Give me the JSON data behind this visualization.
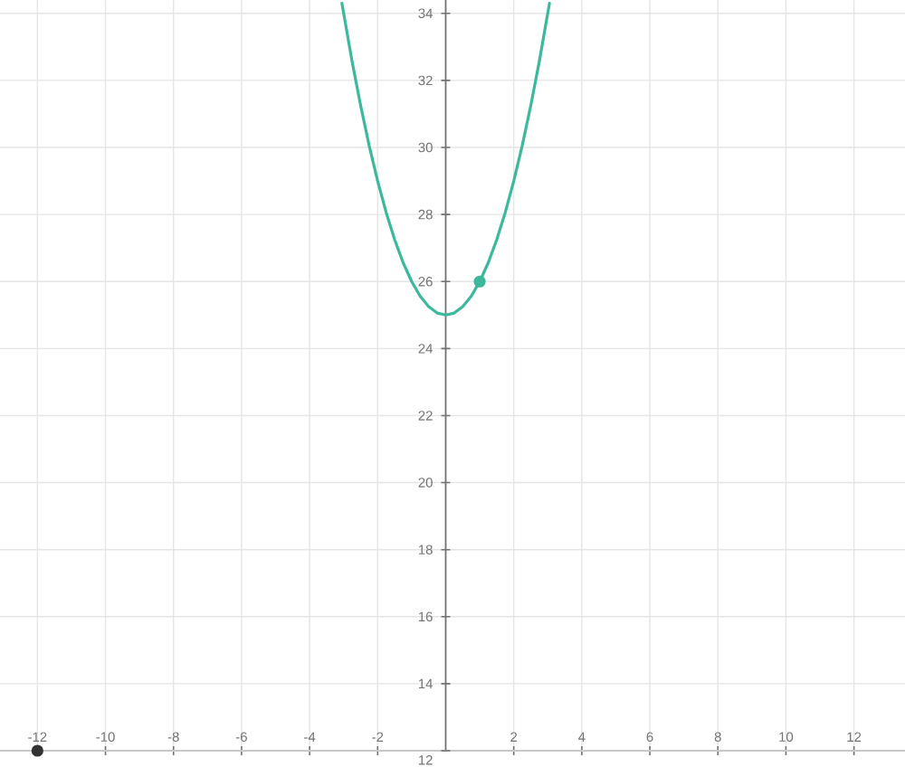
{
  "chart_data": {
    "type": "line",
    "xlim": [
      -13.1,
      13.5
    ],
    "ylim": [
      12,
      34.4
    ],
    "xticks": [
      -12,
      -10,
      -8,
      -6,
      -4,
      -2,
      2,
      4,
      6,
      8,
      10,
      12
    ],
    "yticks": [
      12,
      14,
      16,
      18,
      20,
      22,
      24,
      26,
      28,
      30,
      32,
      34
    ],
    "grid": true,
    "series": [
      {
        "color": "#3cb89c",
        "x": [
          -3.05,
          -2.75,
          -2.5,
          -2.25,
          -2,
          -1.75,
          -1.5,
          -1.25,
          -1,
          -0.75,
          -0.5,
          -0.25,
          0,
          0.25,
          0.5,
          0.75,
          1,
          1.25,
          1.5,
          1.75,
          2,
          2.25,
          2.5,
          2.75,
          3.05
        ],
        "values": [
          34.3,
          32.56,
          31.25,
          30.06,
          29,
          28.06,
          27.25,
          26.56,
          26,
          25.56,
          25.25,
          25.06,
          25,
          25.06,
          25.25,
          25.56,
          26,
          26.56,
          27.25,
          28.06,
          29,
          30.06,
          31.25,
          32.56,
          34.3
        ]
      },
      {
        "type": "scatter",
        "color": "#3cb89c",
        "marker": "circle",
        "x": [
          1
        ],
        "values": [
          26
        ]
      },
      {
        "type": "scatter",
        "color": "#333333",
        "marker": "circle",
        "x": [
          -12
        ],
        "values": [
          12
        ]
      }
    ]
  }
}
